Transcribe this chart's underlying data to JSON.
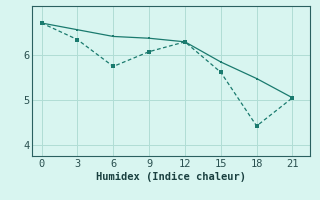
{
  "line1_x": [
    0,
    3,
    6,
    9,
    12,
    15,
    18,
    21
  ],
  "line1_y": [
    6.72,
    6.57,
    6.42,
    6.38,
    6.3,
    5.85,
    5.48,
    5.05
  ],
  "line2_x": [
    0,
    3,
    6,
    9,
    12,
    15,
    18,
    21
  ],
  "line2_y": [
    6.72,
    6.35,
    5.75,
    6.08,
    6.3,
    5.62,
    4.42,
    5.05
  ],
  "line_color": "#1a7a6e",
  "background_color": "#d8f5f0",
  "grid_color": "#b0ddd5",
  "xlabel": "Humidex (Indice chaleur)",
  "xlim": [
    -0.8,
    22.5
  ],
  "ylim": [
    3.75,
    7.1
  ],
  "xticks": [
    0,
    3,
    6,
    9,
    12,
    15,
    18,
    21
  ],
  "yticks": [
    4,
    5,
    6
  ],
  "xlabel_fontsize": 7.5,
  "tick_fontsize": 7.5
}
